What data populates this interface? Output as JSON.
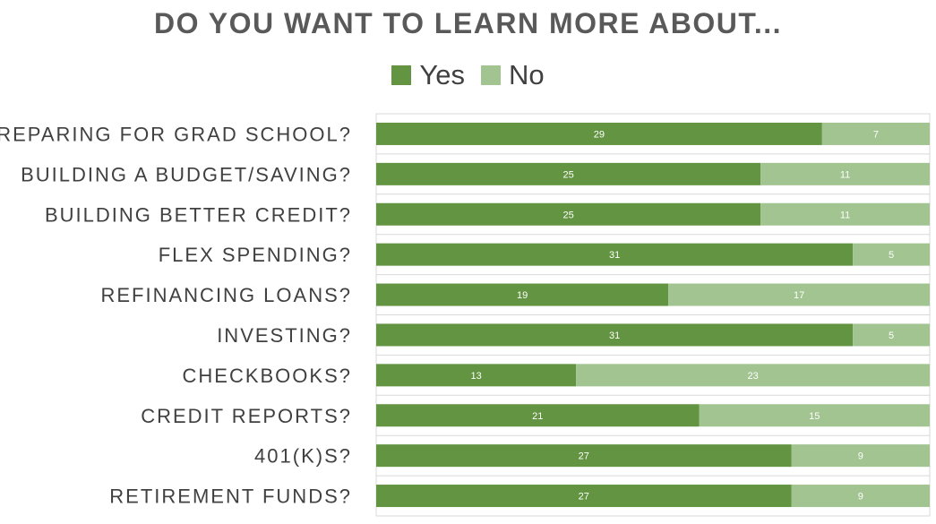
{
  "chart_data": {
    "type": "bar",
    "orientation": "horizontal",
    "stacked": true,
    "title": "DO YOU WANT TO LEARN MORE ABOUT...",
    "categories": [
      "PREPARING FOR GRAD SCHOOL?",
      "BUILDING A BUDGET/SAVING?",
      "BUILDING BETTER CREDIT?",
      "FLEX SPENDING?",
      "REFINANCING LOANS?",
      "INVESTING?",
      "CHECKBOOKS?",
      "CREDIT REPORTS?",
      "401(K)S?",
      "RETIREMENT FUNDS?"
    ],
    "series": [
      {
        "name": "Yes",
        "color": "#629441",
        "values": [
          29,
          25,
          25,
          31,
          19,
          31,
          13,
          21,
          27,
          27
        ]
      },
      {
        "name": "No",
        "color": "#a1c490",
        "values": [
          7,
          11,
          11,
          5,
          17,
          5,
          23,
          15,
          9,
          9
        ]
      }
    ],
    "xlim": [
      0,
      36
    ],
    "legend_position": "top",
    "grid": true,
    "data_labels": true
  }
}
